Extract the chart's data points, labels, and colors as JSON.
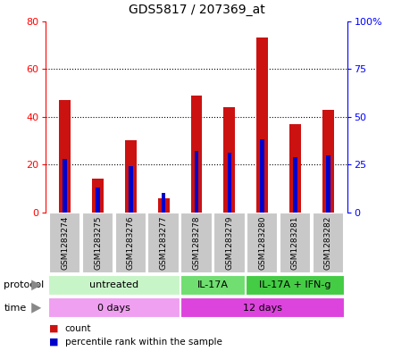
{
  "title": "GDS5817 / 207369_at",
  "samples": [
    "GSM1283274",
    "GSM1283275",
    "GSM1283276",
    "GSM1283277",
    "GSM1283278",
    "GSM1283279",
    "GSM1283280",
    "GSM1283281",
    "GSM1283282"
  ],
  "count_values": [
    47,
    14,
    30,
    6,
    49,
    44,
    73,
    37,
    43
  ],
  "percentile_values": [
    28,
    13,
    24,
    10,
    32,
    31,
    38,
    29,
    30
  ],
  "left_ylim": [
    0,
    80
  ],
  "right_ylim": [
    0,
    100
  ],
  "left_yticks": [
    0,
    20,
    40,
    60,
    80
  ],
  "right_yticks": [
    0,
    25,
    50,
    75,
    100
  ],
  "right_yticklabels": [
    "0",
    "25",
    "50",
    "75",
    "100%"
  ],
  "protocol_groups": [
    {
      "label": "untreated",
      "start": 0,
      "end": 4,
      "color": "#c8f5c8"
    },
    {
      "label": "IL-17A",
      "start": 4,
      "end": 6,
      "color": "#70de70"
    },
    {
      "label": "IL-17A + IFN-g",
      "start": 6,
      "end": 9,
      "color": "#44cc44"
    }
  ],
  "time_groups": [
    {
      "label": "0 days",
      "start": 0,
      "end": 4,
      "color": "#f0a0f0"
    },
    {
      "label": "12 days",
      "start": 4,
      "end": 9,
      "color": "#dd44dd"
    }
  ],
  "bar_color": "#cc1111",
  "percentile_color": "#0000cc",
  "grid_color": "black",
  "plot_bg": "#ffffff",
  "sample_box_color": "#c8c8c8",
  "bar_width": 0.35,
  "pct_bar_width": 0.12
}
